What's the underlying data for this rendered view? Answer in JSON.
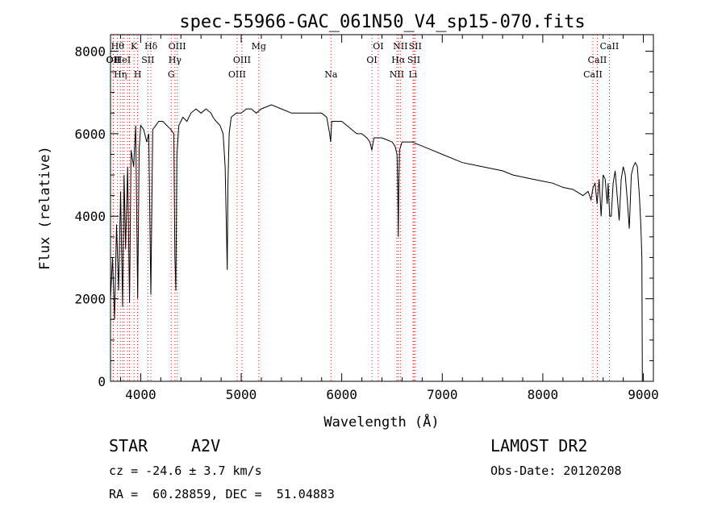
{
  "chart_data": {
    "type": "line",
    "title": "spec-55966-GAC_061N50_V4_sp15-070.fits",
    "xlabel": "Wavelength (Å)",
    "ylabel": "Flux (relative)",
    "xlim": [
      3700,
      9100
    ],
    "ylim": [
      0,
      8400
    ],
    "x_ticks": [
      4000,
      5000,
      6000,
      7000,
      8000,
      9000
    ],
    "y_ticks": [
      0,
      2000,
      4000,
      6000,
      8000
    ],
    "grid": false,
    "line_color": "#000000",
    "marker_color": "#ff0000",
    "series": [
      {
        "x": [
          3700,
          3720,
          3740,
          3760,
          3780,
          3800,
          3820,
          3835,
          3850,
          3870,
          3889,
          3905,
          3930,
          3950,
          3970,
          3985,
          4000,
          4030,
          4060,
          4080,
          4101,
          4120,
          4150,
          4180,
          4220,
          4260,
          4300,
          4330,
          4340,
          4350,
          4360,
          4380,
          4420,
          4460,
          4500,
          4550,
          4600,
          4650,
          4700,
          4720,
          4750,
          4790,
          4820,
          4840,
          4855,
          4861,
          4868,
          4880,
          4900,
          4950,
          5000,
          5050,
          5100,
          5150,
          5200,
          5300,
          5400,
          5500,
          5600,
          5700,
          5800,
          5850,
          5880,
          5890,
          5900,
          5950,
          6000,
          6050,
          6100,
          6150,
          6200,
          6250,
          6280,
          6300,
          6320,
          6350,
          6400,
          6450,
          6500,
          6530,
          6550,
          6558,
          6563,
          6568,
          6575,
          6600,
          6650,
          6700,
          6750,
          6800,
          6900,
          7000,
          7100,
          7200,
          7300,
          7400,
          7500,
          7600,
          7700,
          7800,
          7900,
          8000,
          8100,
          8200,
          8300,
          8400,
          8450,
          8480,
          8500,
          8520,
          8540,
          8560,
          8580,
          8600,
          8620,
          8640,
          8650,
          8665,
          8680,
          8700,
          8720,
          8740,
          8760,
          8780,
          8800,
          8820,
          8840,
          8860,
          8880,
          8900,
          8920,
          8940,
          8960,
          8975,
          8985,
          8990
        ],
        "y": [
          2000,
          3000,
          1500,
          3800,
          2200,
          4600,
          1800,
          5000,
          3200,
          5200,
          1900,
          5600,
          5200,
          6200,
          2000,
          5600,
          6200,
          6100,
          5800,
          6000,
          2100,
          6100,
          6200,
          6300,
          6300,
          6200,
          6100,
          6000,
          3000,
          2200,
          5500,
          6200,
          6400,
          6300,
          6500,
          6600,
          6500,
          6600,
          6500,
          6400,
          6300,
          6200,
          6000,
          5200,
          3500,
          2700,
          4800,
          6000,
          6400,
          6500,
          6500,
          6600,
          6600,
          6500,
          6600,
          6700,
          6600,
          6500,
          6500,
          6500,
          6500,
          6400,
          6000,
          5800,
          6300,
          6300,
          6300,
          6200,
          6100,
          6000,
          6000,
          5900,
          5800,
          5600,
          5900,
          5900,
          5900,
          5850,
          5800,
          5700,
          5500,
          4500,
          3500,
          4800,
          5600,
          5800,
          5800,
          5800,
          5750,
          5700,
          5600,
          5500,
          5400,
          5300,
          5250,
          5200,
          5150,
          5100,
          5000,
          4950,
          4900,
          4850,
          4800,
          4700,
          4650,
          4500,
          4600,
          4400,
          4700,
          4800,
          4300,
          4900,
          4000,
          5000,
          4900,
          4300,
          4800,
          4000,
          4000,
          4800,
          5100,
          4500,
          3900,
          4900,
          5200,
          5000,
          4400,
          3700,
          5000,
          5200,
          5300,
          5200,
          4500,
          3800,
          3000,
          0
        ]
      }
    ],
    "lines": [
      {
        "x": 3726,
        "label": "OII",
        "row": 2
      },
      {
        "x": 3729,
        "label": "OII",
        "row": 2
      },
      {
        "x": 3770,
        "label": "Hθ",
        "row": 1
      },
      {
        "x": 3798,
        "label": "Hη",
        "row": 3
      },
      {
        "x": 3820,
        "label": "HeI",
        "row": 2
      },
      {
        "x": 3835,
        "label": "",
        "row": 0
      },
      {
        "x": 3869,
        "label": "",
        "row": 0
      },
      {
        "x": 3889,
        "label": "",
        "row": 0
      },
      {
        "x": 3934,
        "label": "K",
        "row": 1
      },
      {
        "x": 3970,
        "label": "H",
        "row": 3
      },
      {
        "x": 4072,
        "label": "SII",
        "row": 2
      },
      {
        "x": 4102,
        "label": "Hδ",
        "row": 1
      },
      {
        "x": 4304,
        "label": "G",
        "row": 3
      },
      {
        "x": 4341,
        "label": "Hγ",
        "row": 2
      },
      {
        "x": 4363,
        "label": "OIII",
        "row": 1
      },
      {
        "x": 4959,
        "label": "OIII",
        "row": 3
      },
      {
        "x": 5007,
        "label": "OIII",
        "row": 2
      },
      {
        "x": 5175,
        "label": "Mg",
        "row": 1
      },
      {
        "x": 5893,
        "label": "Na",
        "row": 3
      },
      {
        "x": 6300,
        "label": "OI",
        "row": 2
      },
      {
        "x": 6363,
        "label": "OI",
        "row": 1
      },
      {
        "x": 6548,
        "label": "NII",
        "row": 3
      },
      {
        "x": 6563,
        "label": "Hα",
        "row": 2
      },
      {
        "x": 6583,
        "label": "NII",
        "row": 1
      },
      {
        "x": 6708,
        "label": "Li",
        "row": 3
      },
      {
        "x": 6717,
        "label": "SII",
        "row": 2
      },
      {
        "x": 6731,
        "label": "SII",
        "row": 1
      },
      {
        "x": 8498,
        "label": "CaII",
        "row": 3
      },
      {
        "x": 8542,
        "label": "CaII",
        "row": 2
      },
      {
        "x": 8662,
        "label": "CaII",
        "row": 1
      }
    ]
  },
  "info": {
    "object_class": "STAR",
    "subclass": "A2V",
    "redshift": "cz = -24.6 ± 3.7 km/s",
    "coords": "RA =  60.28859, DEC =  51.04883",
    "survey": "LAMOST DR2",
    "obs_date": "Obs-Date: 20120208"
  }
}
